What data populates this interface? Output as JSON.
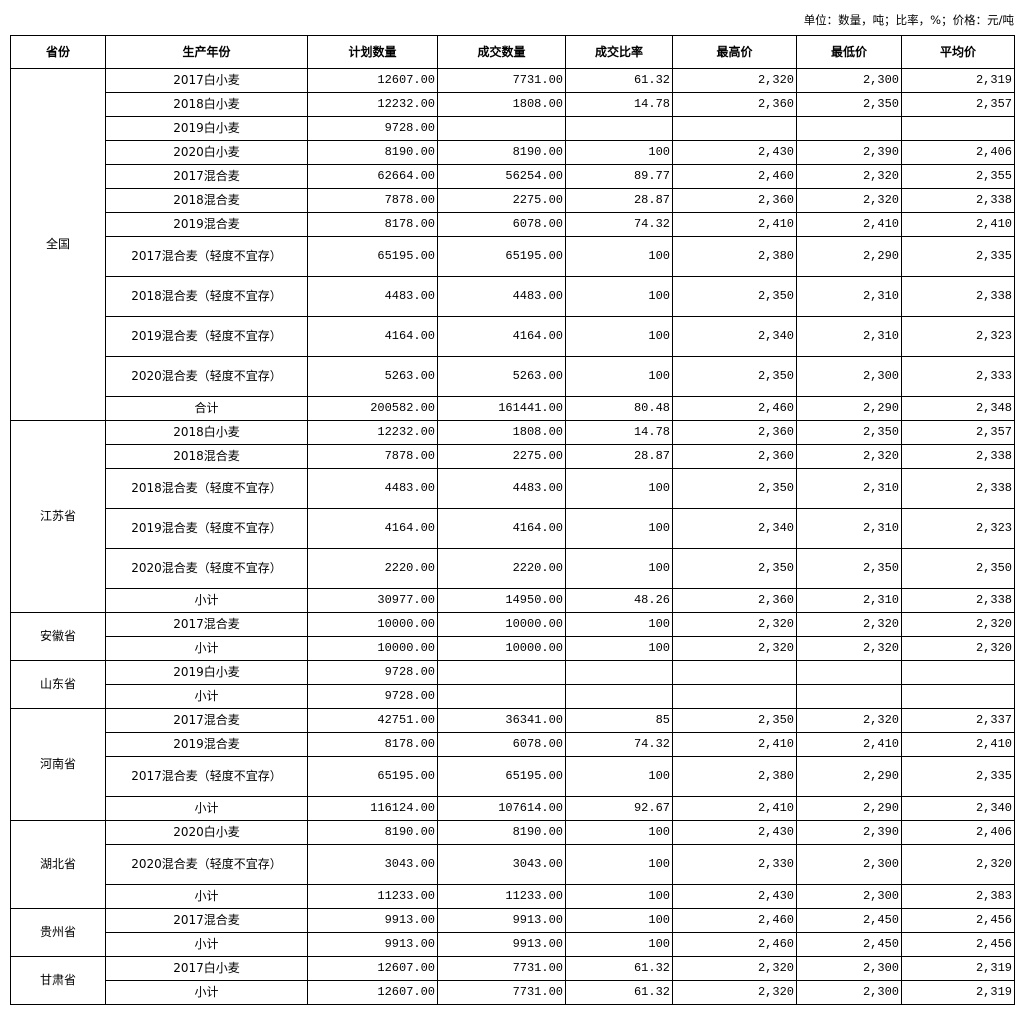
{
  "unit_note": "单位：数量，吨；比率，%；价格：元/吨",
  "headers": [
    "省份",
    "生产年份",
    "计划数量",
    "成交数量",
    "成交比率",
    "最高价",
    "最低价",
    "平均价"
  ],
  "groups": [
    {
      "province": "全国",
      "rows": [
        [
          "2017白小麦",
          "12607.00",
          "7731.00",
          "61.32",
          "2,320",
          "2,300",
          "2,319"
        ],
        [
          "2018白小麦",
          "12232.00",
          "1808.00",
          "14.78",
          "2,360",
          "2,350",
          "2,357"
        ],
        [
          "2019白小麦",
          "9728.00",
          "",
          "",
          "",
          "",
          ""
        ],
        [
          "2020白小麦",
          "8190.00",
          "8190.00",
          "100",
          "2,430",
          "2,390",
          "2,406"
        ],
        [
          "2017混合麦",
          "62664.00",
          "56254.00",
          "89.77",
          "2,460",
          "2,320",
          "2,355"
        ],
        [
          "2018混合麦",
          "7878.00",
          "2275.00",
          "28.87",
          "2,360",
          "2,320",
          "2,338"
        ],
        [
          "2019混合麦",
          "8178.00",
          "6078.00",
          "74.32",
          "2,410",
          "2,410",
          "2,410"
        ],
        [
          "2017混合麦（轻度不宜存）",
          "65195.00",
          "65195.00",
          "100",
          "2,380",
          "2,290",
          "2,335"
        ],
        [
          "2018混合麦（轻度不宜存）",
          "4483.00",
          "4483.00",
          "100",
          "2,350",
          "2,310",
          "2,338"
        ],
        [
          "2019混合麦（轻度不宜存）",
          "4164.00",
          "4164.00",
          "100",
          "2,340",
          "2,310",
          "2,323"
        ],
        [
          "2020混合麦（轻度不宜存）",
          "5263.00",
          "5263.00",
          "100",
          "2,350",
          "2,300",
          "2,333"
        ],
        [
          "合计",
          "200582.00",
          "161441.00",
          "80.48",
          "2,460",
          "2,290",
          "2,348"
        ]
      ]
    },
    {
      "province": "江苏省",
      "rows": [
        [
          "2018白小麦",
          "12232.00",
          "1808.00",
          "14.78",
          "2,360",
          "2,350",
          "2,357"
        ],
        [
          "2018混合麦",
          "7878.00",
          "2275.00",
          "28.87",
          "2,360",
          "2,320",
          "2,338"
        ],
        [
          "2018混合麦（轻度不宜存）",
          "4483.00",
          "4483.00",
          "100",
          "2,350",
          "2,310",
          "2,338"
        ],
        [
          "2019混合麦（轻度不宜存）",
          "4164.00",
          "4164.00",
          "100",
          "2,340",
          "2,310",
          "2,323"
        ],
        [
          "2020混合麦（轻度不宜存）",
          "2220.00",
          "2220.00",
          "100",
          "2,350",
          "2,350",
          "2,350"
        ],
        [
          "小计",
          "30977.00",
          "14950.00",
          "48.26",
          "2,360",
          "2,310",
          "2,338"
        ]
      ]
    },
    {
      "province": "安徽省",
      "rows": [
        [
          "2017混合麦",
          "10000.00",
          "10000.00",
          "100",
          "2,320",
          "2,320",
          "2,320"
        ],
        [
          "小计",
          "10000.00",
          "10000.00",
          "100",
          "2,320",
          "2,320",
          "2,320"
        ]
      ]
    },
    {
      "province": "山东省",
      "rows": [
        [
          "2019白小麦",
          "9728.00",
          "",
          "",
          "",
          "",
          ""
        ],
        [
          "小计",
          "9728.00",
          "",
          "",
          "",
          "",
          ""
        ]
      ]
    },
    {
      "province": "河南省",
      "rows": [
        [
          "2017混合麦",
          "42751.00",
          "36341.00",
          "85",
          "2,350",
          "2,320",
          "2,337"
        ],
        [
          "2019混合麦",
          "8178.00",
          "6078.00",
          "74.32",
          "2,410",
          "2,410",
          "2,410"
        ],
        [
          "2017混合麦（轻度不宜存）",
          "65195.00",
          "65195.00",
          "100",
          "2,380",
          "2,290",
          "2,335"
        ],
        [
          "小计",
          "116124.00",
          "107614.00",
          "92.67",
          "2,410",
          "2,290",
          "2,340"
        ]
      ]
    },
    {
      "province": "湖北省",
      "rows": [
        [
          "2020白小麦",
          "8190.00",
          "8190.00",
          "100",
          "2,430",
          "2,390",
          "2,406"
        ],
        [
          "2020混合麦（轻度不宜存）",
          "3043.00",
          "3043.00",
          "100",
          "2,330",
          "2,300",
          "2,320"
        ],
        [
          "小计",
          "11233.00",
          "11233.00",
          "100",
          "2,430",
          "2,300",
          "2,383"
        ]
      ]
    },
    {
      "province": "贵州省",
      "rows": [
        [
          "2017混合麦",
          "9913.00",
          "9913.00",
          "100",
          "2,460",
          "2,450",
          "2,456"
        ],
        [
          "小计",
          "9913.00",
          "9913.00",
          "100",
          "2,460",
          "2,450",
          "2,456"
        ]
      ]
    },
    {
      "province": "甘肃省",
      "rows": [
        [
          "2017白小麦",
          "12607.00",
          "7731.00",
          "61.32",
          "2,320",
          "2,300",
          "2,319"
        ],
        [
          "小计",
          "12607.00",
          "7731.00",
          "61.32",
          "2,320",
          "2,300",
          "2,319"
        ]
      ]
    }
  ]
}
